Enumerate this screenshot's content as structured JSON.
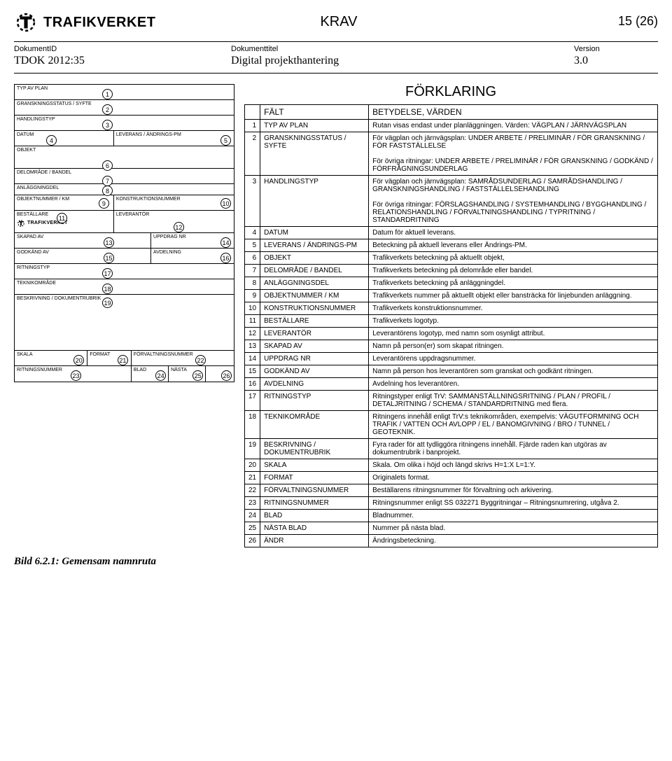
{
  "header": {
    "org": "TRAFIKVERKET",
    "section_label": "KRAV",
    "page_indicator": "15 (26)"
  },
  "doc_meta": {
    "id_label": "DokumentID",
    "id_value": "TDOK 2012:35",
    "title_label": "Dokumenttitel",
    "title_value": "Digital projekthantering",
    "version_label": "Version",
    "version_value": "3.0"
  },
  "form_labels": {
    "f1": "TYP AV PLAN",
    "f2": "GRANSKNINGSSTATUS / SYFTE",
    "f3": "HANDLINGSTYP",
    "f4": "DATUM",
    "f5": "LEVERANS / ÄNDRINGS-PM",
    "f6": "OBJEKT",
    "f7": "DELOMRÅDE / BANDEL",
    "f8": "ANLÄGGNINGDEL",
    "f9": "OBJEKTNUMMER / KM",
    "f10": "KONSTRUKTIONSNUMMER",
    "f11": "BESTÄLLARE",
    "f12": "LEVERANTÖR",
    "f13": "SKAPAD AV",
    "f14": "UPPDRAG NR",
    "f15": "GODKÄND AV",
    "f16": "AVDELNING",
    "f17": "RITNINGSTYP",
    "f18": "TEKNIKOMRÅDE",
    "f19": "BESKRIVNING / DOKUMENTRUBRIK",
    "f20": "SKALA",
    "f21": "FORMAT",
    "f22": "FÖRVALTNINGSNUMMER",
    "f23": "RITNINGSNUMMER",
    "f24": "BLAD",
    "f25": "NÄSTA",
    "f26": ""
  },
  "expl": {
    "title": "FÖRKLARING",
    "head_field": "FÄLT",
    "head_meaning": "BETYDELSE, VÄRDEN",
    "rows": [
      {
        "n": "1",
        "field": "TYP AV PLAN",
        "text": "Rutan visas endast under planläggningen. Värden: VÄGPLAN / JÄRNVÄGSPLAN"
      },
      {
        "n": "2",
        "field": "GRANSKNINGSSTATUS / SYFTE",
        "text": "För vägplan och järnvägsplan: UNDER ARBETE / PRELIMINÄR / FÖR GRANSKNING / FÖR FASTSTÄLLELSE\n\nFör övriga ritningar: UNDER ARBETE / PRELIMINÄR / FÖR GRANSKNING / GODKÄND / FÖRFRÅGNINGSUNDERLAG"
      },
      {
        "n": "3",
        "field": "HANDLINGSTYP",
        "text": "För vägplan och järnvägsplan: SAMRÅDSUNDERLAG / SAMRÅDSHANDLING / GRANSKNINGSHANDLING / FASTSTÄLLELSEHANDLING\n\nFör övriga ritningar: FÖRSLAGSHANDLING / SYSTEMHANDLING / BYGGHANDLING / RELATIONSHANDLING / FÖRVALTNINGSHANDLING / TYPRITNING / STANDARDRITNING"
      },
      {
        "n": "4",
        "field": "DATUM",
        "text": "Datum för aktuell leverans."
      },
      {
        "n": "5",
        "field": "LEVERANS / ÄNDRINGS-PM",
        "text": "Beteckning på aktuell leverans eller Ändrings-PM."
      },
      {
        "n": "6",
        "field": "OBJEKT",
        "text": "Trafikverkets beteckning på aktuellt objekt,"
      },
      {
        "n": "7",
        "field": "DELOMRÅDE / BANDEL",
        "text": "Trafikverkets beteckning på delområde eller bandel."
      },
      {
        "n": "8",
        "field": "ANLÄGGNINGSDEL",
        "text": "Trafikverkets beteckning på anläggningdel."
      },
      {
        "n": "9",
        "field": "OBJEKTNUMMER / KM",
        "text": "Trafikverkets nummer på aktuellt objekt eller bansträcka för linjebunden anläggning."
      },
      {
        "n": "10",
        "field": "KONSTRUKTIONSNUMMER",
        "text": "Trafikverkets konstruktionsnummer."
      },
      {
        "n": "11",
        "field": "BESTÄLLARE",
        "text": "Trafikverkets logotyp."
      },
      {
        "n": "12",
        "field": "LEVERANTÖR",
        "text": "Leverantörens logotyp, med namn som osynligt attribut."
      },
      {
        "n": "13",
        "field": "SKAPAD AV",
        "text": "Namn på person(er) som skapat ritningen."
      },
      {
        "n": "14",
        "field": "UPPDRAG NR",
        "text": "Leverantörens uppdragsnummer."
      },
      {
        "n": "15",
        "field": "GODKÄND AV",
        "text": "Namn på person hos leverantören som granskat och godkänt ritningen."
      },
      {
        "n": "16",
        "field": "AVDELNING",
        "text": "Avdelning hos leverantören."
      },
      {
        "n": "17",
        "field": "RITNINGSTYP",
        "text": "Ritningstyper enligt TrV: SAMMANSTÄLLNINGSRITNING / PLAN / PROFIL / DETALJRITNING / SCHEMA / STANDARDRITNING   med flera."
      },
      {
        "n": "18",
        "field": "TEKNIKOMRÅDE",
        "text": "Ritningens innehåll enligt TrV:s teknikområden, exempelvis: VÄGUTFORMNING OCH TRAFIK / VATTEN OCH AVLOPP / EL / BANOMGIVNING / BRO / TUNNEL / GEOTEKNIK."
      },
      {
        "n": "19",
        "field": "BESKRIVNING / DOKUMENTRUBRIK",
        "text": "Fyra rader för att tydliggöra ritningens innehåll. Fjärde raden kan utgöras av dokumentrubrik i banprojekt."
      },
      {
        "n": "20",
        "field": "SKALA",
        "text": "Skala. Om olika i höjd och längd skrivs H=1:X  L=1:Y."
      },
      {
        "n": "21",
        "field": "FORMAT",
        "text": "Originalets format."
      },
      {
        "n": "22",
        "field": "FÖRVALTNINGSNUMMER",
        "text": "Beställarens ritningsnummer för förvaltning och arkivering."
      },
      {
        "n": "23",
        "field": "RITNINGSNUMMER",
        "text": "Ritningsnummer enligt SS 032271 Byggritningar – Ritningsnumrering, utgåva 2."
      },
      {
        "n": "24",
        "field": "BLAD",
        "text": "Bladnummer."
      },
      {
        "n": "25",
        "field": "NÄSTA BLAD",
        "text": "Nummer på nästa blad."
      },
      {
        "n": "26",
        "field": "ÄNDR",
        "text": "Ändringsbeteckning."
      }
    ]
  },
  "caption": "Bild 6.2.1: Gemensam namnruta"
}
